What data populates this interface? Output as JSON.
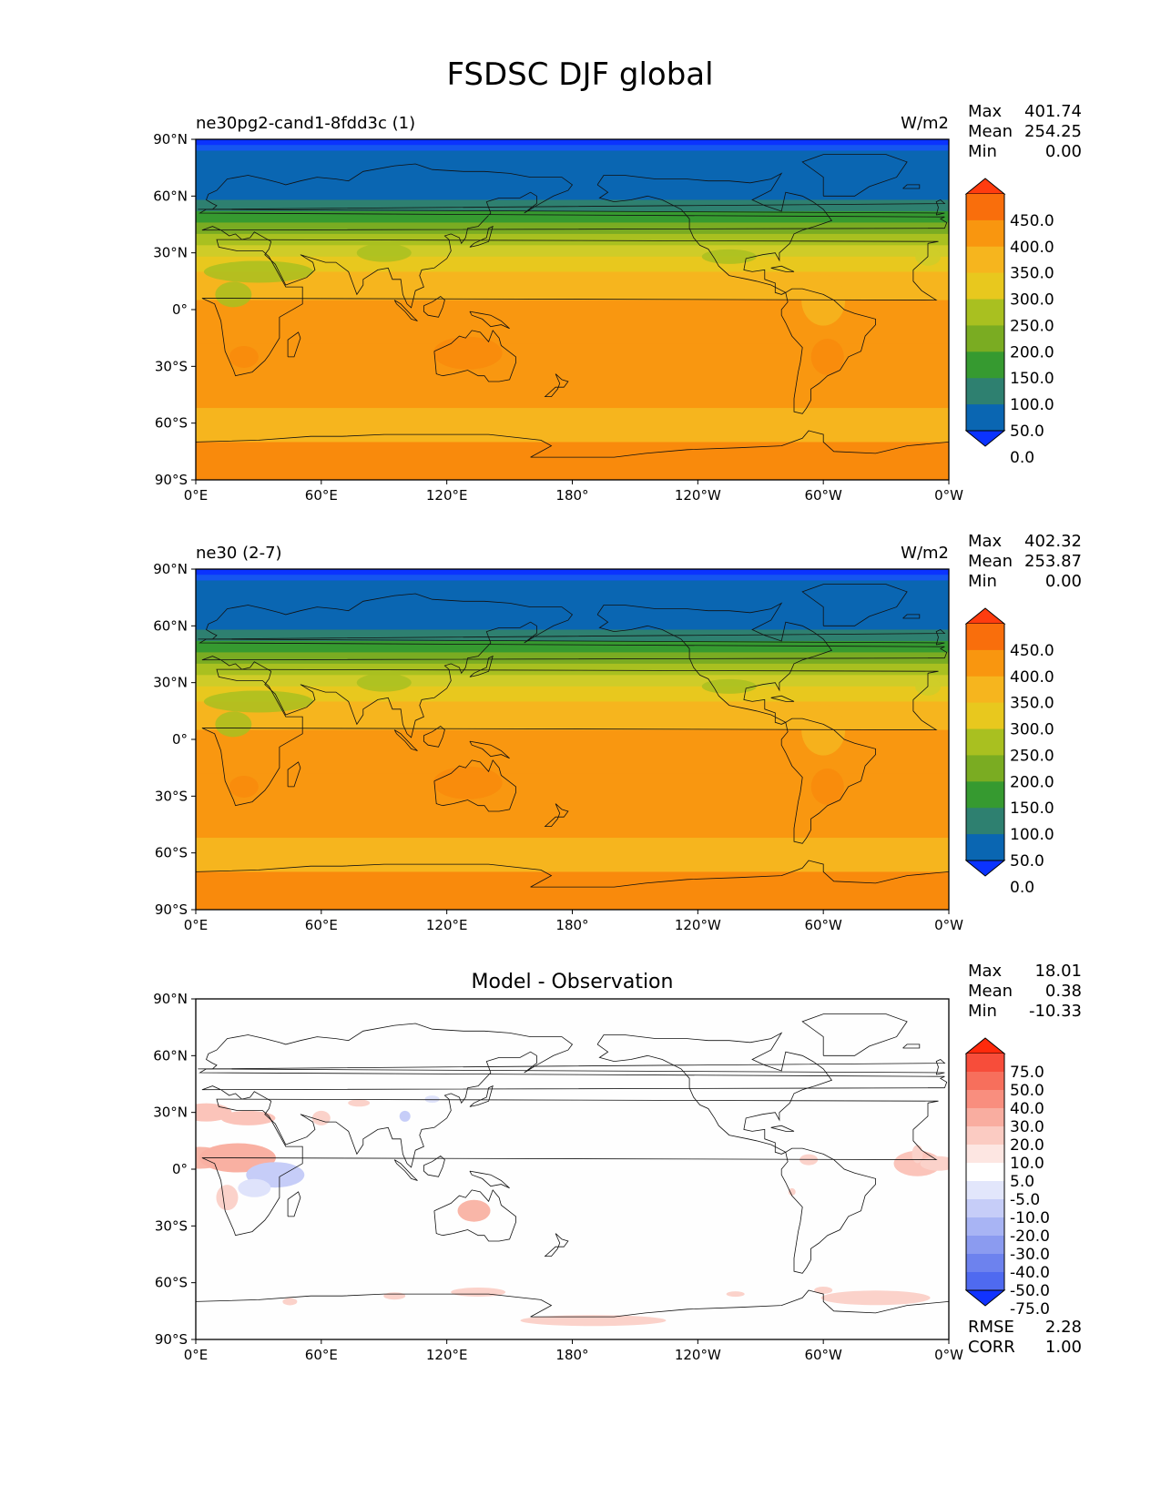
{
  "figure": {
    "title": "FSDSC DJF global"
  },
  "panels": [
    {
      "id": "test",
      "kind": "field",
      "title_left": "ne30pg2-cand1-8fdd3c (1)",
      "title_center": "",
      "units": "W/m2",
      "stats": [
        {
          "label": "Max",
          "value": "401.74"
        },
        {
          "label": "Mean",
          "value": "254.25"
        },
        {
          "label": "Min",
          "value": "0.00"
        }
      ],
      "band_edges": [
        90,
        87,
        84,
        58,
        52,
        46,
        40,
        34,
        28,
        20,
        5,
        -18,
        -52,
        -70,
        -90
      ],
      "band_colors": [
        "#0b33ff",
        "#1556f0",
        "#0a66b2",
        "#2e8070",
        "#369a30",
        "#7aac22",
        "#a9c020",
        "#cfcc28",
        "#e8c81e",
        "#f6b51e",
        "#f99710",
        "#f99710",
        "#f6b51e",
        "#f98a0c"
      ]
    },
    {
      "id": "reference",
      "kind": "field",
      "title_left": "ne30 (2-7)",
      "title_center": "",
      "units": "W/m2",
      "stats": [
        {
          "label": "Max",
          "value": "402.32"
        },
        {
          "label": "Mean",
          "value": "253.87"
        },
        {
          "label": "Min",
          "value": "0.00"
        }
      ],
      "band_edges": [
        90,
        87,
        84,
        58,
        52,
        46,
        40,
        34,
        28,
        20,
        5,
        -18,
        -52,
        -70,
        -90
      ],
      "band_colors": [
        "#0b33ff",
        "#1556f0",
        "#0a66b2",
        "#2e8070",
        "#369a30",
        "#7aac22",
        "#a9c020",
        "#cfcc28",
        "#e8c81e",
        "#f6b51e",
        "#f99710",
        "#f99710",
        "#f6b51e",
        "#f98a0c"
      ]
    },
    {
      "id": "difference",
      "kind": "diff",
      "title_left": "",
      "title_center": "Model - Observation",
      "units": "",
      "stats": [
        {
          "label": "Max",
          "value": "18.01"
        },
        {
          "label": "Mean",
          "value": "0.38"
        },
        {
          "label": "Min",
          "value": "-10.33"
        }
      ],
      "metrics": [
        {
          "label": "RMSE",
          "value": "2.28"
        },
        {
          "label": "CORR",
          "value": "1.00"
        }
      ]
    }
  ],
  "axes": {
    "xticks": [
      "0°E",
      "60°E",
      "120°E",
      "180°",
      "120°W",
      "60°W",
      "0°W"
    ],
    "yticks": [
      "90°N",
      "60°N",
      "30°N",
      "0°",
      "30°S",
      "60°S",
      "90°S"
    ]
  },
  "colorbars": {
    "field": {
      "labels": [
        "450.0",
        "400.0",
        "350.0",
        "300.0",
        "250.0",
        "200.0",
        "150.0",
        "100.0",
        "50.0",
        "0.0"
      ],
      "colors": [
        "#ff3c0f",
        "#f96e0c",
        "#f9960f",
        "#f6b51e",
        "#e8c81e",
        "#a9c020",
        "#7aac22",
        "#369a30",
        "#2e8070",
        "#0a66b2",
        "#0b33ff"
      ]
    },
    "diff": {
      "labels": [
        "75.0",
        "50.0",
        "40.0",
        "30.0",
        "20.0",
        "10.0",
        "5.0",
        "-5.0",
        "-10.0",
        "-20.0",
        "-30.0",
        "-40.0",
        "-50.0",
        "-75.0"
      ],
      "colors": [
        "#ff2a0c",
        "#f74d3a",
        "#f76f5c",
        "#f98e7e",
        "#f9ada0",
        "#fbcbc2",
        "#fde6e2",
        "#ffffff",
        "#e2e6fb",
        "#c6cdf8",
        "#a8b4f4",
        "#8b9bf0",
        "#6d82ee",
        "#4f6af0",
        "#1133ff"
      ]
    }
  }
}
